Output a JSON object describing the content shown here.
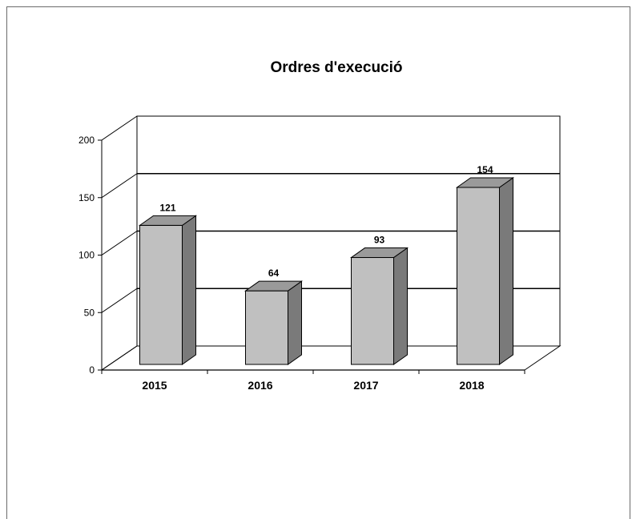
{
  "chart_data": {
    "type": "bar",
    "title": "Ordres d'execució",
    "categories": [
      "2015",
      "2016",
      "2017",
      "2018"
    ],
    "values": [
      121,
      64,
      93,
      154
    ],
    "data_labels": [
      "121",
      "64",
      "93",
      "154"
    ],
    "ylim": [
      0,
      200
    ],
    "yticks": [
      0,
      50,
      100,
      150,
      200
    ],
    "ytick_labels": [
      "0",
      "50",
      "100",
      "150",
      "200"
    ],
    "xlabel": "",
    "ylabel": "",
    "grid": true,
    "style": "3d",
    "colors": {
      "bar_front": "#c0c0c0",
      "bar_side": "#7a7a7a",
      "bar_top": "#9a9a9a",
      "gridline": "#000000"
    }
  }
}
